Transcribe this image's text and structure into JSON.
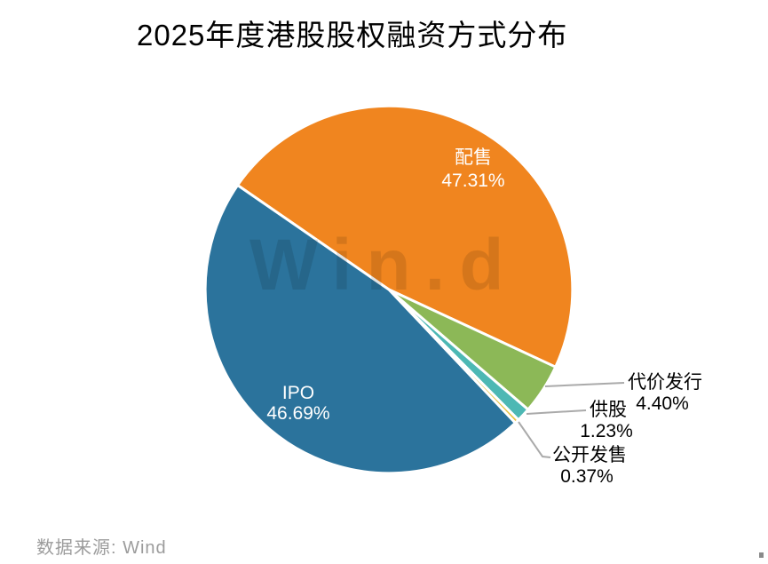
{
  "page": {
    "background": "#FFFFFF"
  },
  "header": {
    "title": "2025年度港股股权融资方式分布"
  },
  "chart_data": {
    "type": "pie",
    "title": "2025年度港股股权融资方式分布",
    "slices": [
      {
        "label": "配售",
        "value": 47.31,
        "percent_text": "47.31%",
        "color": "#F0851F",
        "label_placement": "inside"
      },
      {
        "label": "代价发行",
        "value": 4.4,
        "percent_text": "4.40%",
        "color": "#8CB857",
        "label_placement": "outside"
      },
      {
        "label": "供股",
        "value": 1.23,
        "percent_text": "1.23%",
        "color": "#4DB8B4",
        "label_placement": "outside"
      },
      {
        "label": "公开发售",
        "value": 0.37,
        "percent_text": "0.37%",
        "color": "#E8C23C",
        "label_placement": "outside"
      },
      {
        "label": "IPO",
        "value": 46.69,
        "percent_text": "46.69%",
        "color": "#2B739C",
        "label_placement": "inside"
      }
    ],
    "start_angle_deg_clockwise_from_north": 304.6,
    "legend": "none",
    "grid": "off",
    "inside_label_color": "#FFFFFF",
    "outside_label_color": "#000000",
    "leader_line_color": "#AAAAAA",
    "slice_gap_color": "#FFFFFF"
  },
  "watermark": {
    "text": "Win.d"
  },
  "footer": {
    "source_note": "数据来源: Wind"
  }
}
